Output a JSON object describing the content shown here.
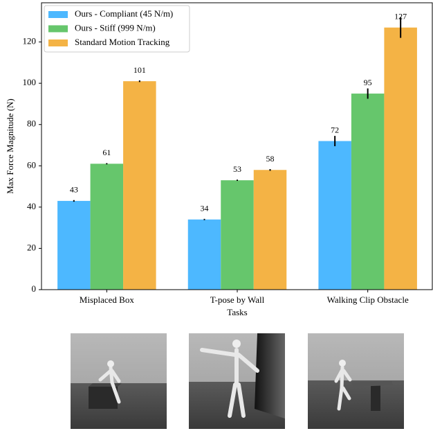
{
  "chart_data": {
    "type": "bar",
    "x_label": "Tasks",
    "y_label": "Max Force Magnitude (N)",
    "categories": [
      "Misplaced Box",
      "T-pose by Wall",
      "Walking Clip Obstacle"
    ],
    "series": [
      {
        "name": "Ours - Compliant (45 N/m)",
        "color": "#4db8ff",
        "values": [
          43,
          34,
          72
        ],
        "errors": [
          0.4,
          0.3,
          2.5
        ]
      },
      {
        "name": "Ours - Stiff (999 N/m)",
        "color": "#66c66c",
        "values": [
          61,
          53,
          95
        ],
        "errors": [
          0.3,
          0.3,
          2.5
        ]
      },
      {
        "name": "Standard Motion Tracking",
        "color": "#f4b345",
        "values": [
          101,
          58,
          127
        ],
        "errors": [
          0.4,
          0.4,
          5
        ]
      }
    ],
    "ylim": [
      0,
      139
    ],
    "yticks": [
      0,
      20,
      40,
      60,
      80,
      100,
      120
    ],
    "legend": "upper-left"
  }
}
